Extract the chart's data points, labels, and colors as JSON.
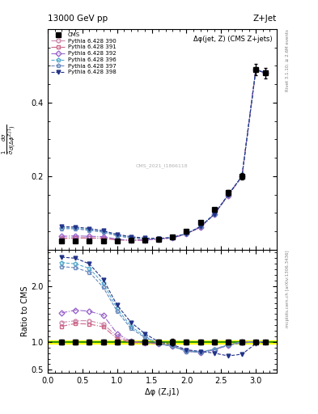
{
  "title_left": "13000 GeV pp",
  "title_right": "Z+Jet",
  "plot_title": "Δφ(jet, Z) (CMS Z+jets)",
  "ylabel_main": "$\\frac{1}{\\bar{\\sigma}}\\frac{d\\sigma}{d(\\Delta\\phi^{Z,j1})}$",
  "ylabel_ratio": "Ratio to CMS",
  "xlabel": "Δφ (Z,j1)",
  "right_label_main": "Rivet 3.1.10; ≥ 2.6M events",
  "right_label_ratio": "mcplots.cern.ch [arXiv:1306.3436]",
  "watermark": "CMS_2021_I1866118",
  "cms_x": [
    0.2,
    0.4,
    0.6,
    0.8,
    1.0,
    1.2,
    1.4,
    1.6,
    1.8,
    2.0,
    2.2,
    2.4,
    2.6,
    2.8,
    3.0,
    3.14
  ],
  "cms_y": [
    0.025,
    0.025,
    0.025,
    0.025,
    0.025,
    0.026,
    0.027,
    0.029,
    0.035,
    0.05,
    0.075,
    0.11,
    0.155,
    0.2,
    0.49,
    0.48
  ],
  "cms_yerr": [
    0.001,
    0.001,
    0.001,
    0.001,
    0.001,
    0.001,
    0.001,
    0.001,
    0.002,
    0.002,
    0.003,
    0.005,
    0.007,
    0.009,
    0.015,
    0.015
  ],
  "pythia_x": [
    0.2,
    0.4,
    0.6,
    0.8,
    1.0,
    1.2,
    1.4,
    1.6,
    1.8,
    2.0,
    2.2,
    2.4,
    2.6,
    2.8,
    3.0,
    3.14
  ],
  "series": [
    {
      "label": "Pythia 6.428 390",
      "color": "#cc88aa",
      "marker": "o",
      "mfc": "none",
      "linestyle": "-.",
      "y": [
        0.032,
        0.033,
        0.033,
        0.032,
        0.028,
        0.026,
        0.027,
        0.029,
        0.033,
        0.043,
        0.062,
        0.096,
        0.148,
        0.2,
        0.49,
        0.48
      ],
      "ratio": [
        1.35,
        1.38,
        1.38,
        1.32,
        1.1,
        1.0,
        0.98,
        0.97,
        0.93,
        0.85,
        0.82,
        0.87,
        0.95,
        1.0,
        1.0,
        1.0
      ]
    },
    {
      "label": "Pythia 6.428 391",
      "color": "#cc6688",
      "marker": "s",
      "mfc": "none",
      "linestyle": "-.",
      "y": [
        0.031,
        0.032,
        0.032,
        0.031,
        0.027,
        0.026,
        0.027,
        0.029,
        0.033,
        0.043,
        0.062,
        0.096,
        0.148,
        0.2,
        0.49,
        0.48
      ],
      "ratio": [
        1.28,
        1.33,
        1.32,
        1.27,
        1.06,
        0.99,
        0.98,
        0.97,
        0.92,
        0.84,
        0.81,
        0.86,
        0.94,
        1.0,
        1.0,
        1.0
      ]
    },
    {
      "label": "Pythia 6.428 392",
      "color": "#9966cc",
      "marker": "D",
      "mfc": "none",
      "linestyle": "-.",
      "y": [
        0.037,
        0.038,
        0.037,
        0.036,
        0.029,
        0.026,
        0.027,
        0.029,
        0.033,
        0.043,
        0.062,
        0.096,
        0.148,
        0.2,
        0.49,
        0.48
      ],
      "ratio": [
        1.52,
        1.57,
        1.55,
        1.48,
        1.15,
        1.01,
        0.99,
        0.97,
        0.92,
        0.84,
        0.81,
        0.86,
        0.94,
        1.0,
        1.0,
        1.0
      ]
    },
    {
      "label": "Pythia 6.428 396",
      "color": "#55aacc",
      "marker": "p",
      "mfc": "none",
      "linestyle": "--",
      "y": [
        0.06,
        0.059,
        0.055,
        0.05,
        0.04,
        0.034,
        0.031,
        0.03,
        0.034,
        0.044,
        0.063,
        0.097,
        0.149,
        0.2,
        0.49,
        0.48
      ],
      "ratio": [
        2.42,
        2.4,
        2.32,
        2.05,
        1.6,
        1.28,
        1.1,
        0.97,
        0.92,
        0.84,
        0.82,
        0.87,
        0.95,
        1.0,
        1.0,
        1.0
      ]
    },
    {
      "label": "Pythia 6.428 397",
      "color": "#6688bb",
      "marker": "p",
      "mfc": "none",
      "linestyle": "--",
      "y": [
        0.058,
        0.057,
        0.053,
        0.048,
        0.038,
        0.032,
        0.03,
        0.03,
        0.034,
        0.044,
        0.063,
        0.097,
        0.149,
        0.2,
        0.49,
        0.48
      ],
      "ratio": [
        2.35,
        2.33,
        2.25,
        1.98,
        1.55,
        1.24,
        1.08,
        0.97,
        0.92,
        0.83,
        0.81,
        0.86,
        0.94,
        0.98,
        1.0,
        1.0
      ]
    },
    {
      "label": "Pythia 6.428 398",
      "color": "#223388",
      "marker": "v",
      "mfc": "#223388",
      "linestyle": "--",
      "y": [
        0.063,
        0.062,
        0.058,
        0.052,
        0.042,
        0.036,
        0.032,
        0.031,
        0.034,
        0.044,
        0.063,
        0.097,
        0.149,
        0.2,
        0.49,
        0.48
      ],
      "ratio": [
        2.52,
        2.5,
        2.4,
        2.12,
        1.66,
        1.35,
        1.15,
        1.0,
        0.95,
        0.86,
        0.83,
        0.8,
        0.75,
        0.78,
        0.97,
        1.0
      ]
    }
  ],
  "ylim_main": [
    0.0,
    0.6
  ],
  "ylim_ratio": [
    0.45,
    2.65
  ],
  "xlim": [
    0.0,
    3.3
  ],
  "yticks_main": [
    0.2,
    0.4
  ],
  "yticks_ratio": [
    0.5,
    1.0,
    2.0
  ]
}
